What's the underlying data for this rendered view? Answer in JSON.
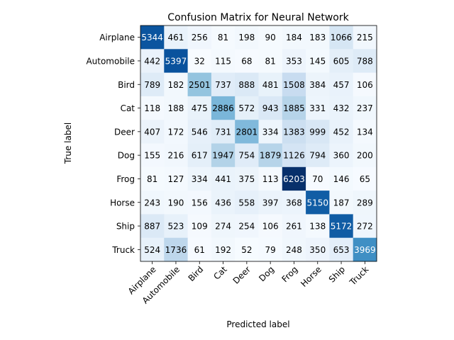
{
  "chart_data": {
    "type": "heatmap",
    "title": "Confusion Matrix for Neural Network",
    "xlabel": "Predicted label",
    "ylabel": "True label",
    "colormap": "Blues",
    "x_tick_rotation_deg": 45,
    "categories": [
      "Airplane",
      "Automobile",
      "Bird",
      "Cat",
      "Deer",
      "Dog",
      "Frog",
      "Horse",
      "Ship",
      "Truck"
    ],
    "matrix": [
      [
        5344,
        461,
        256,
        81,
        198,
        90,
        184,
        183,
        1066,
        215
      ],
      [
        442,
        5397,
        32,
        115,
        68,
        81,
        353,
        145,
        605,
        788
      ],
      [
        789,
        182,
        2501,
        737,
        888,
        481,
        1508,
        384,
        457,
        106
      ],
      [
        118,
        188,
        475,
        2886,
        572,
        943,
        1885,
        331,
        432,
        237
      ],
      [
        407,
        172,
        546,
        731,
        2801,
        334,
        1383,
        999,
        452,
        134
      ],
      [
        155,
        216,
        617,
        1947,
        754,
        1879,
        1126,
        794,
        360,
        200
      ],
      [
        81,
        127,
        334,
        441,
        375,
        113,
        6203,
        70,
        146,
        65
      ],
      [
        243,
        190,
        156,
        436,
        558,
        397,
        368,
        5150,
        187,
        289
      ],
      [
        887,
        523,
        109,
        274,
        254,
        106,
        261,
        138,
        5172,
        272
      ],
      [
        524,
        1736,
        61,
        192,
        52,
        79,
        248,
        350,
        653,
        3969
      ]
    ]
  }
}
